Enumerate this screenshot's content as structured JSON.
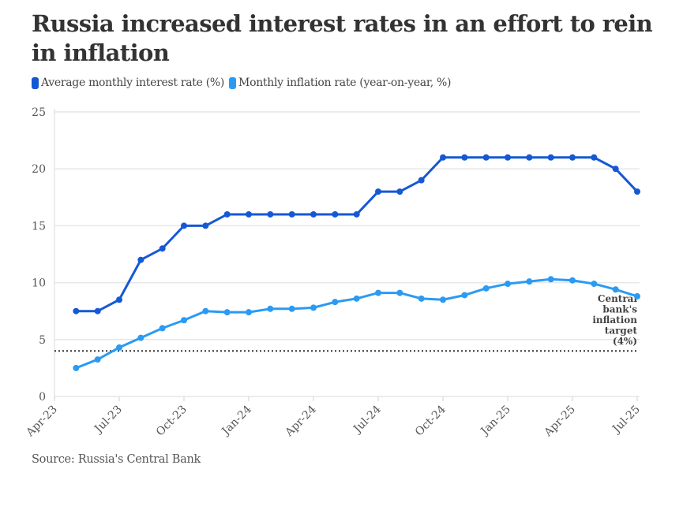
{
  "title": "Russia increased interest rates in an effort to rein in inflation",
  "source": "Source: Russia's Central Bank",
  "legend": [
    {
      "label": "Average monthly interest rate (%)",
      "color": "#1558d6"
    },
    {
      "label": "Monthly inflation rate (year-on-year, %)",
      "color": "#2b9af3"
    }
  ],
  "chart_data": {
    "type": "line",
    "title": "Russia increased interest rates in an effort to rein in inflation",
    "xlabel": "",
    "ylabel": "",
    "ylim": [
      0,
      25
    ],
    "yticks": [
      0,
      5,
      10,
      15,
      20,
      25
    ],
    "grid": true,
    "legend_position": "top-left",
    "x_range": [
      "Apr-23",
      "Jul-25"
    ],
    "xticks": [
      "Apr-23",
      "Jul-23",
      "Oct-23",
      "Jan-24",
      "Apr-24",
      "Jul-24",
      "Oct-24",
      "Jan-25",
      "Apr-25",
      "Jul-25"
    ],
    "x": [
      "May-23",
      "Jun-23",
      "Jul-23",
      "Aug-23",
      "Sep-23",
      "Oct-23",
      "Nov-23",
      "Dec-23",
      "Jan-24",
      "Feb-24",
      "Mar-24",
      "Apr-24",
      "May-24",
      "Jun-24",
      "Jul-24",
      "Aug-24",
      "Sep-24",
      "Oct-24",
      "Nov-24",
      "Dec-24",
      "Jan-25",
      "Feb-25",
      "Mar-25",
      "Apr-25",
      "May-25",
      "Jun-25",
      "Jul-25"
    ],
    "series": [
      {
        "name": "Average monthly interest rate (%)",
        "color": "#1558d6",
        "values": [
          7.5,
          7.5,
          8.5,
          12,
          13,
          15,
          15,
          16,
          16,
          16,
          16,
          16,
          16,
          16,
          18,
          18,
          19,
          21,
          21,
          21,
          21,
          21,
          21,
          21,
          21,
          20,
          18
        ]
      },
      {
        "name": "Monthly inflation rate (year-on-year, %)",
        "color": "#2b9af3",
        "values": [
          2.5,
          3.25,
          4.3,
          5.15,
          6.0,
          6.7,
          7.5,
          7.4,
          7.4,
          7.7,
          7.7,
          7.8,
          8.3,
          8.6,
          9.1,
          9.1,
          8.6,
          8.5,
          8.9,
          9.5,
          9.9,
          10.1,
          10.3,
          10.2,
          9.9,
          9.4,
          8.8
        ]
      }
    ],
    "reference_line": {
      "value": 4,
      "style": "dotted",
      "color": "#333333"
    },
    "annotations": [
      {
        "text": [
          "Central",
          "bank's",
          "inflation",
          "target",
          "(4%)"
        ],
        "anchor": "reference_line"
      }
    ]
  }
}
